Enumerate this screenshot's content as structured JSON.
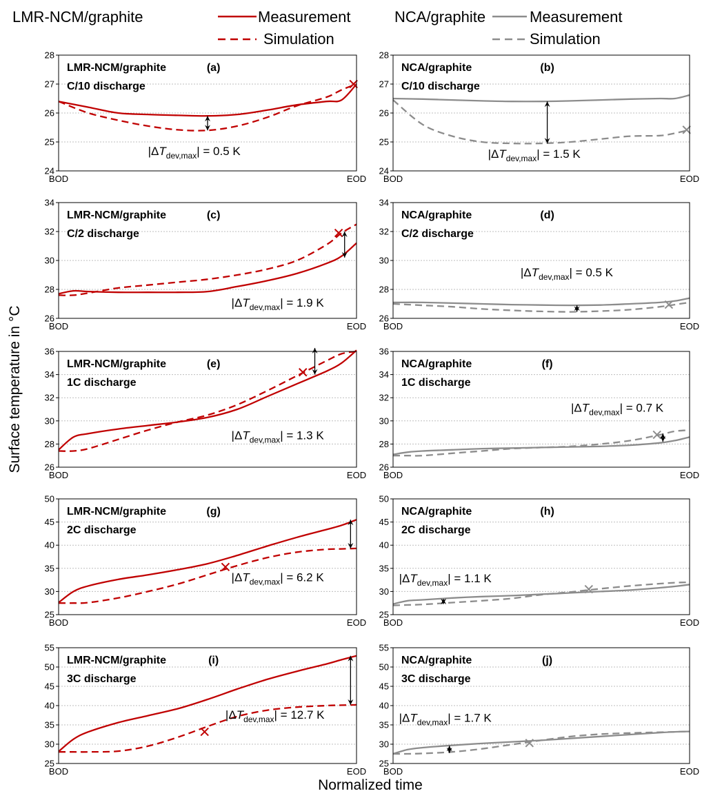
{
  "legend": {
    "left": {
      "group": "LMR-NCM/graphite",
      "measurement": "Measurement",
      "simulation": "Simulation"
    },
    "right": {
      "group": "NCA/graphite",
      "measurement": "Measurement",
      "simulation": "Simulation"
    }
  },
  "axes": {
    "ylabel": "Surface temperature in °C",
    "xlabel": "Normalized time",
    "x_tick_start": "BOD",
    "x_tick_end": "EOD"
  },
  "annotation_prefix": "|ΔT",
  "annotation_sub": "dev,max",
  "colors": {
    "lmr": "#c00000",
    "nca": "#8c8c8c",
    "grid": "#bdbdbd"
  },
  "chart_data": [
    {
      "type": "line",
      "panel": "(a)",
      "cell": "LMR-NCM/graphite",
      "condition": "C/10 discharge",
      "ylim": [
        24,
        28
      ],
      "yticks": [
        24,
        25,
        26,
        27,
        28
      ],
      "x": [
        0,
        0.1,
        0.2,
        0.3,
        0.4,
        0.5,
        0.6,
        0.7,
        0.8,
        0.9,
        0.95,
        1.0
      ],
      "series": [
        {
          "values": [
            26.4,
            26.2,
            26.0,
            25.95,
            25.92,
            25.9,
            25.95,
            26.1,
            26.28,
            26.4,
            26.45,
            27.0
          ]
        },
        {
          "values": [
            26.4,
            26.0,
            25.75,
            25.55,
            25.42,
            25.4,
            25.55,
            25.85,
            26.25,
            26.55,
            26.8,
            27.0
          ]
        }
      ],
      "marker": {
        "x": 0.99,
        "y": 27.0
      },
      "arrow": {
        "x": 0.5,
        "y1": 25.9,
        "y2": 25.4
      },
      "annotation": {
        "value": "| = 0.5 K",
        "x": 0.3,
        "y": 24.55
      }
    },
    {
      "type": "line",
      "panel": "(b)",
      "cell": "NCA/graphite",
      "condition": "C/10 discharge",
      "ylim": [
        24,
        28
      ],
      "yticks": [
        24,
        25,
        26,
        27,
        28
      ],
      "x": [
        0,
        0.1,
        0.2,
        0.3,
        0.4,
        0.5,
        0.6,
        0.7,
        0.8,
        0.9,
        0.95,
        1.0
      ],
      "series": [
        {
          "values": [
            26.5,
            26.48,
            26.45,
            26.42,
            26.4,
            26.4,
            26.42,
            26.45,
            26.48,
            26.5,
            26.5,
            26.62
          ]
        },
        {
          "values": [
            26.45,
            25.6,
            25.2,
            25.0,
            24.95,
            24.95,
            25.0,
            25.1,
            25.2,
            25.22,
            25.3,
            25.42
          ]
        }
      ],
      "marker": {
        "x": 0.99,
        "y": 25.42
      },
      "arrow": {
        "x": 0.52,
        "y1": 26.4,
        "y2": 24.95
      },
      "annotation": {
        "value": "| = 1.5 K",
        "x": 0.32,
        "y": 24.45
      }
    },
    {
      "type": "line",
      "panel": "(c)",
      "cell": "LMR-NCM/graphite",
      "condition": "C/2 discharge",
      "ylim": [
        26,
        34
      ],
      "yticks": [
        26,
        28,
        30,
        32,
        34
      ],
      "x": [
        0,
        0.05,
        0.1,
        0.2,
        0.3,
        0.4,
        0.5,
        0.6,
        0.7,
        0.8,
        0.9,
        0.95,
        1.0
      ],
      "series": [
        {
          "values": [
            27.7,
            27.9,
            27.85,
            27.8,
            27.8,
            27.8,
            27.85,
            28.2,
            28.6,
            29.1,
            29.8,
            30.3,
            31.2
          ]
        },
        {
          "values": [
            27.6,
            27.6,
            27.75,
            28.1,
            28.3,
            28.5,
            28.7,
            29.0,
            29.4,
            30.0,
            31.1,
            31.9,
            32.5
          ]
        }
      ],
      "marker": {
        "x": 0.94,
        "y": 31.9
      },
      "arrow": {
        "x": 0.96,
        "y1": 30.2,
        "y2": 32.0
      },
      "annotation": {
        "value": "| = 1.9 K",
        "x": 0.58,
        "y": 26.8
      }
    },
    {
      "type": "line",
      "panel": "(d)",
      "cell": "NCA/graphite",
      "condition": "C/2 discharge",
      "ylim": [
        26,
        34
      ],
      "yticks": [
        26,
        28,
        30,
        32,
        34
      ],
      "x": [
        0,
        0.1,
        0.2,
        0.3,
        0.4,
        0.5,
        0.6,
        0.7,
        0.8,
        0.9,
        0.95,
        1.0
      ],
      "series": [
        {
          "values": [
            27.1,
            27.1,
            27.05,
            27.0,
            26.95,
            26.92,
            26.9,
            26.92,
            27.0,
            27.1,
            27.2,
            27.4
          ]
        },
        {
          "values": [
            27.0,
            26.9,
            26.8,
            26.65,
            26.55,
            26.48,
            26.45,
            26.5,
            26.6,
            26.8,
            26.95,
            27.1
          ]
        }
      ],
      "marker": {
        "x": 0.93,
        "y": 26.95
      },
      "arrow": {
        "x": 0.62,
        "y1": 26.9,
        "y2": 26.45
      },
      "annotation": {
        "value": "| = 0.5 K",
        "x": 0.43,
        "y": 28.9
      }
    },
    {
      "type": "line",
      "panel": "(e)",
      "cell": "LMR-NCM/graphite",
      "condition": "1C discharge",
      "ylim": [
        26,
        36
      ],
      "yticks": [
        26,
        28,
        30,
        32,
        34,
        36
      ],
      "x": [
        0,
        0.05,
        0.1,
        0.2,
        0.3,
        0.4,
        0.5,
        0.6,
        0.7,
        0.8,
        0.9,
        0.95,
        1.0
      ],
      "series": [
        {
          "values": [
            27.5,
            28.6,
            28.9,
            29.3,
            29.6,
            29.9,
            30.3,
            31.0,
            32.1,
            33.2,
            34.3,
            35.0,
            36.1
          ]
        },
        {
          "values": [
            27.4,
            27.4,
            27.6,
            28.4,
            29.2,
            29.9,
            30.5,
            31.4,
            32.6,
            33.9,
            35.2,
            35.8,
            36.0
          ]
        }
      ],
      "marker": {
        "x": 0.82,
        "y": 34.2
      },
      "arrow": {
        "x": 0.86,
        "y1": 34.0,
        "y2": 36.3
      },
      "annotation": {
        "value": "| = 1.3 K",
        "x": 0.58,
        "y": 28.4
      }
    },
    {
      "type": "line",
      "panel": "(f)",
      "cell": "NCA/graphite",
      "condition": "1C discharge",
      "ylim": [
        26,
        36
      ],
      "yticks": [
        26,
        28,
        30,
        32,
        34,
        36
      ],
      "x": [
        0,
        0.05,
        0.1,
        0.2,
        0.3,
        0.4,
        0.5,
        0.6,
        0.7,
        0.8,
        0.9,
        0.95,
        1.0
      ],
      "series": [
        {
          "values": [
            27.1,
            27.3,
            27.4,
            27.5,
            27.6,
            27.65,
            27.7,
            27.75,
            27.8,
            27.9,
            28.1,
            28.3,
            28.6
          ]
        },
        {
          "values": [
            27.0,
            27.0,
            27.0,
            27.2,
            27.4,
            27.6,
            27.7,
            27.8,
            28.0,
            28.3,
            28.8,
            29.1,
            29.2
          ]
        }
      ],
      "marker": {
        "x": 0.89,
        "y": 28.8
      },
      "arrow": {
        "x": 0.91,
        "y1": 28.2,
        "y2": 28.9
      },
      "annotation": {
        "value": "| = 0.7 K",
        "x": 0.6,
        "y": 30.8
      }
    },
    {
      "type": "line",
      "panel": "(g)",
      "cell": "LMR-NCM/graphite",
      "condition": "2C discharge",
      "ylim": [
        25,
        50
      ],
      "yticks": [
        25,
        30,
        35,
        40,
        45,
        50
      ],
      "x": [
        0,
        0.05,
        0.1,
        0.2,
        0.3,
        0.4,
        0.5,
        0.6,
        0.7,
        0.8,
        0.9,
        0.95,
        1.0
      ],
      "series": [
        {
          "values": [
            27.6,
            30.0,
            31.2,
            32.6,
            33.6,
            34.7,
            36.0,
            37.8,
            39.8,
            41.7,
            43.4,
            44.3,
            45.5
          ]
        },
        {
          "values": [
            27.5,
            27.5,
            27.6,
            28.6,
            30.0,
            31.6,
            33.6,
            35.6,
            37.3,
            38.5,
            39.1,
            39.2,
            39.3
          ]
        }
      ],
      "marker": {
        "x": 0.56,
        "y": 35.3
      },
      "arrow": {
        "x": 0.98,
        "y1": 39.3,
        "y2": 45.5
      },
      "annotation": {
        "value": "| = 6.2 K",
        "x": 0.58,
        "y": 32.2
      }
    },
    {
      "type": "line",
      "panel": "(h)",
      "cell": "NCA/graphite",
      "condition": "2C discharge",
      "ylim": [
        25,
        50
      ],
      "yticks": [
        25,
        30,
        35,
        40,
        45,
        50
      ],
      "x": [
        0,
        0.05,
        0.1,
        0.2,
        0.3,
        0.4,
        0.5,
        0.6,
        0.7,
        0.8,
        0.9,
        0.95,
        1.0
      ],
      "series": [
        {
          "values": [
            27.3,
            28.0,
            28.2,
            28.6,
            28.9,
            29.1,
            29.4,
            29.7,
            30.0,
            30.3,
            30.8,
            31.1,
            31.5
          ]
        },
        {
          "values": [
            27.0,
            27.1,
            27.2,
            27.6,
            28.0,
            28.5,
            29.3,
            29.9,
            30.6,
            31.2,
            31.7,
            31.9,
            32.0
          ]
        }
      ],
      "marker": {
        "x": 0.66,
        "y": 30.5
      },
      "arrow": {
        "x": 0.17,
        "y1": 28.4,
        "y2": 27.3
      },
      "annotation": {
        "value": "| = 1.1 K",
        "x": 0.02,
        "y": 32.0
      }
    },
    {
      "type": "line",
      "panel": "(i)",
      "cell": "LMR-NCM/graphite",
      "condition": "3C discharge",
      "ylim": [
        25,
        55
      ],
      "yticks": [
        25,
        30,
        35,
        40,
        45,
        50,
        55
      ],
      "x": [
        0,
        0.05,
        0.1,
        0.2,
        0.3,
        0.4,
        0.5,
        0.6,
        0.7,
        0.8,
        0.9,
        0.95,
        1.0
      ],
      "series": [
        {
          "values": [
            28.1,
            31.3,
            33.2,
            35.6,
            37.4,
            39.2,
            41.6,
            44.3,
            46.8,
            48.9,
            50.8,
            51.9,
            52.9
          ]
        },
        {
          "values": [
            28.0,
            28.0,
            28.0,
            28.2,
            29.5,
            31.8,
            34.6,
            37.2,
            38.8,
            39.6,
            40.0,
            40.1,
            40.2
          ]
        }
      ],
      "marker": {
        "x": 0.49,
        "y": 33.2
      },
      "arrow": {
        "x": 0.98,
        "y1": 40.2,
        "y2": 52.9
      },
      "annotation": {
        "value": "| = 12.7 K",
        "x": 0.56,
        "y": 36.6
      }
    },
    {
      "type": "line",
      "panel": "(j)",
      "cell": "NCA/graphite",
      "condition": "3C discharge",
      "ylim": [
        25,
        55
      ],
      "yticks": [
        25,
        30,
        35,
        40,
        45,
        50,
        55
      ],
      "x": [
        0,
        0.05,
        0.1,
        0.2,
        0.3,
        0.4,
        0.5,
        0.6,
        0.7,
        0.8,
        0.9,
        0.95,
        1.0
      ],
      "series": [
        {
          "values": [
            27.5,
            28.6,
            29.1,
            29.7,
            30.2,
            30.6,
            31.0,
            31.5,
            32.0,
            32.5,
            33.0,
            33.2,
            33.3
          ]
        },
        {
          "values": [
            27.5,
            27.5,
            27.6,
            28.0,
            28.8,
            29.9,
            31.0,
            32.0,
            32.6,
            32.9,
            33.1,
            33.2,
            33.3
          ]
        }
      ],
      "marker": {
        "x": 0.46,
        "y": 30.3
      },
      "arrow": {
        "x": 0.19,
        "y1": 29.6,
        "y2": 27.7
      },
      "annotation": {
        "value": "| = 1.7 K",
        "x": 0.02,
        "y": 35.8
      }
    }
  ]
}
